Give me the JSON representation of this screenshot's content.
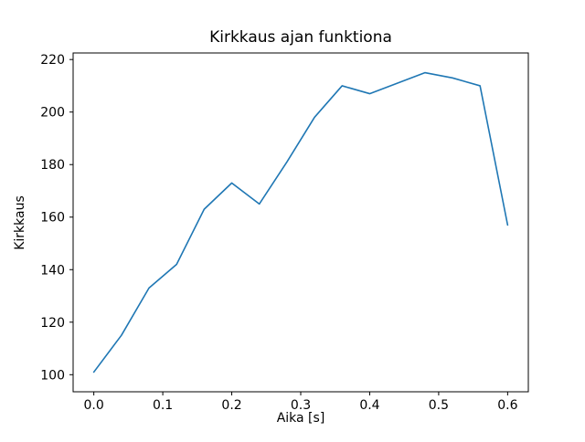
{
  "chart_data": {
    "type": "line",
    "title": "Kirkkaus ajan funktiona",
    "xlabel": "Aika [s]",
    "ylabel": "Kirkkaus",
    "x": [
      0.0,
      0.04,
      0.08,
      0.12,
      0.16,
      0.2,
      0.24,
      0.28,
      0.32,
      0.36,
      0.4,
      0.44,
      0.48,
      0.52,
      0.56,
      0.6
    ],
    "y": [
      101,
      115,
      133,
      142,
      163,
      173,
      165,
      181,
      198,
      210,
      207,
      211,
      215,
      213,
      210,
      157
    ],
    "series_name": "Kirkkaus",
    "line_color": "#1f77b4",
    "line_width": 1.6,
    "xlim": [
      -0.03,
      0.63
    ],
    "ylim": [
      93.5,
      222.5
    ],
    "xticks": [
      {
        "v": 0.0,
        "label": "0.0"
      },
      {
        "v": 0.1,
        "label": "0.1"
      },
      {
        "v": 0.2,
        "label": "0.2"
      },
      {
        "v": 0.3,
        "label": "0.3"
      },
      {
        "v": 0.4,
        "label": "0.4"
      },
      {
        "v": 0.5,
        "label": "0.5"
      },
      {
        "v": 0.6,
        "label": "0.6"
      }
    ],
    "yticks": [
      {
        "v": 100,
        "label": "100"
      },
      {
        "v": 120,
        "label": "120"
      },
      {
        "v": 140,
        "label": "140"
      },
      {
        "v": 160,
        "label": "160"
      },
      {
        "v": 180,
        "label": "180"
      },
      {
        "v": 200,
        "label": "200"
      },
      {
        "v": 220,
        "label": "220"
      }
    ],
    "grid": false,
    "legend": "none",
    "axes_color": "#000000"
  }
}
